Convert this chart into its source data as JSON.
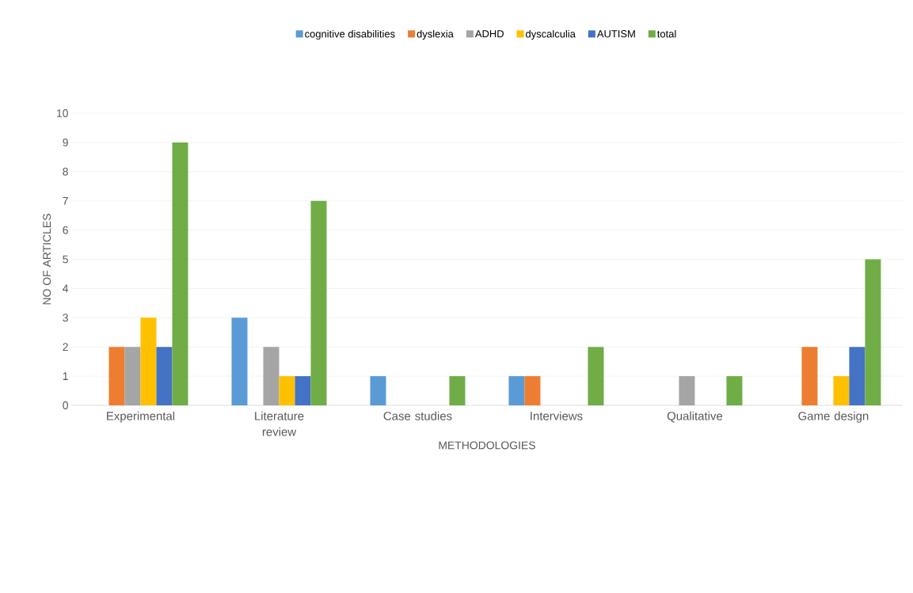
{
  "chart_data": {
    "type": "bar",
    "xlabel": "METHODOLOGIES",
    "ylabel": "NO OF ARTICLES",
    "categories": [
      "Experimental",
      "Literature review",
      "Case studies",
      "Interviews",
      "Qualitative",
      "Game design"
    ],
    "series": [
      {
        "name": "cognitive disabilities",
        "color": "#5b9bd5",
        "values": [
          0,
          3,
          1,
          1,
          0,
          0
        ]
      },
      {
        "name": "dyslexia",
        "color": "#ed7d31",
        "values": [
          2,
          0,
          0,
          1,
          0,
          2
        ]
      },
      {
        "name": "ADHD",
        "color": "#a5a5a5",
        "values": [
          2,
          2,
          0,
          0,
          1,
          0
        ]
      },
      {
        "name": "dyscalculia",
        "color": "#ffc000",
        "values": [
          3,
          1,
          0,
          0,
          0,
          1
        ]
      },
      {
        "name": "AUTISM",
        "color": "#4472c4",
        "values": [
          2,
          1,
          0,
          0,
          0,
          2
        ]
      },
      {
        "name": "total",
        "color": "#70ad47",
        "values": [
          9,
          7,
          1,
          2,
          1,
          5
        ]
      }
    ],
    "ylim": [
      0,
      10
    ],
    "yticks": [
      0,
      1,
      2,
      3,
      4,
      5,
      6,
      7,
      8,
      9,
      10
    ],
    "grid": "y",
    "legend": "top"
  }
}
